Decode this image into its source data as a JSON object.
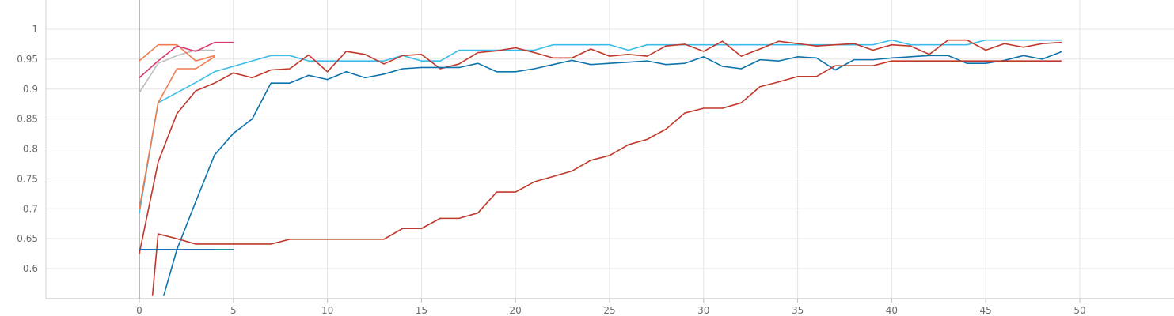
{
  "chart_data": {
    "type": "line",
    "title": "",
    "xlabel": "",
    "ylabel": "",
    "xlim": [
      -5,
      55
    ],
    "ylim": [
      0.555,
      1.045
    ],
    "x_ticks": [
      0,
      5,
      10,
      15,
      20,
      25,
      30,
      35,
      40,
      45,
      50
    ],
    "y_ticks": [
      0.6,
      0.65,
      0.7,
      0.75,
      0.8,
      0.85,
      0.9,
      0.95,
      1
    ],
    "y_tick_labels": [
      "0.6",
      "0.65",
      "0.7",
      "0.75",
      "0.8",
      "0.85",
      "0.9",
      "0.95",
      "1"
    ],
    "grid": true,
    "series": [
      {
        "color": "#3cbce8",
        "x": [
          0,
          1,
          2,
          3,
          4,
          5,
          6,
          7,
          8,
          9,
          10,
          11,
          12,
          13,
          14,
          15,
          16,
          17,
          18,
          19,
          20,
          21,
          22,
          23,
          24,
          25,
          26,
          27,
          28,
          29,
          30,
          31,
          32,
          33,
          34,
          35,
          36,
          37,
          38,
          39,
          40,
          41,
          42,
          43,
          44,
          45,
          46,
          47,
          48,
          49
        ],
        "y": [
          0.693,
          0.877,
          0.894,
          0.911,
          0.929,
          0.938,
          0.947,
          0.956,
          0.956,
          0.947,
          0.947,
          0.947,
          0.947,
          0.947,
          0.956,
          0.947,
          0.947,
          0.965,
          0.965,
          0.965,
          0.965,
          0.965,
          0.974,
          0.974,
          0.974,
          0.974,
          0.965,
          0.974,
          0.974,
          0.974,
          0.974,
          0.974,
          0.974,
          0.974,
          0.974,
          0.974,
          0.974,
          0.974,
          0.974,
          0.974,
          0.982,
          0.974,
          0.974,
          0.974,
          0.974,
          0.982,
          0.982,
          0.982,
          0.982,
          0.982
        ]
      },
      {
        "color": "#c0382b",
        "x": [
          0,
          1,
          2,
          3,
          4,
          5,
          6,
          7,
          8,
          9,
          10,
          11,
          12,
          13,
          14,
          15,
          16,
          17,
          18,
          19,
          20,
          21,
          22,
          23,
          24,
          25,
          26,
          27,
          28,
          29,
          30,
          31,
          32,
          33,
          34,
          35,
          36,
          37,
          38,
          39,
          40,
          41,
          42,
          43,
          44,
          45,
          46,
          47,
          48,
          49
        ],
        "y": [
          0.625,
          0.778,
          0.859,
          0.897,
          0.91,
          0.927,
          0.919,
          0.932,
          0.934,
          0.957,
          0.929,
          0.963,
          0.958,
          0.942,
          0.956,
          0.958,
          0.934,
          0.942,
          0.961,
          0.964,
          0.969,
          0.961,
          0.952,
          0.952,
          0.967,
          0.955,
          0.958,
          0.955,
          0.972,
          0.975,
          0.963,
          0.98,
          0.955,
          0.967,
          0.98,
          0.976,
          0.972,
          0.974,
          0.976,
          0.965,
          0.974,
          0.972,
          0.958,
          0.982,
          0.982,
          0.965,
          0.976,
          0.97,
          0.976,
          0.978
        ]
      },
      {
        "color": "#0d73ac",
        "x": [
          1.3,
          2,
          3,
          4,
          5,
          6,
          7,
          8,
          9,
          10,
          11,
          12,
          13,
          14,
          15,
          16,
          17,
          18,
          19,
          20,
          21,
          22,
          23,
          24,
          25,
          26,
          27,
          28,
          29,
          30,
          31,
          32,
          33,
          34,
          35,
          36,
          37,
          38,
          39,
          40,
          41,
          42,
          43,
          44,
          45,
          46,
          47,
          48,
          49
        ],
        "y": [
          0.555,
          0.632,
          0.712,
          0.79,
          0.826,
          0.85,
          0.91,
          0.91,
          0.923,
          0.916,
          0.929,
          0.919,
          0.925,
          0.934,
          0.936,
          0.936,
          0.936,
          0.943,
          0.929,
          0.929,
          0.934,
          0.941,
          0.948,
          0.941,
          0.943,
          0.945,
          0.947,
          0.941,
          0.943,
          0.954,
          0.938,
          0.934,
          0.949,
          0.947,
          0.954,
          0.952,
          0.932,
          0.949,
          0.949,
          0.952,
          0.954,
          0.956,
          0.956,
          0.943,
          0.943,
          0.948,
          0.956,
          0.95,
          0.962
        ]
      },
      {
        "color": "#c0382b",
        "x": [
          0.7,
          1,
          2,
          3,
          4,
          5,
          6,
          7,
          8,
          9,
          10,
          11,
          12,
          13,
          14,
          15,
          16,
          17,
          18,
          19,
          20,
          21,
          22,
          23,
          24,
          25,
          26,
          27,
          28,
          29,
          30,
          31,
          32,
          33,
          34,
          35,
          36,
          37,
          38,
          39,
          40,
          41,
          42,
          43,
          44,
          45,
          46,
          47,
          48,
          49
        ],
        "y": [
          0.555,
          0.658,
          0.65,
          0.641,
          0.641,
          0.641,
          0.641,
          0.641,
          0.649,
          0.649,
          0.649,
          0.649,
          0.649,
          0.649,
          0.667,
          0.667,
          0.684,
          0.684,
          0.693,
          0.728,
          0.728,
          0.745,
          0.754,
          0.763,
          0.781,
          0.789,
          0.807,
          0.816,
          0.833,
          0.86,
          0.868,
          0.868,
          0.877,
          0.904,
          0.912,
          0.921,
          0.921,
          0.939,
          0.939,
          0.939,
          0.947,
          0.947,
          0.947,
          0.947,
          0.947,
          0.947,
          0.947,
          0.947,
          0.947,
          0.947
        ]
      },
      {
        "color": "#1a8bab",
        "x": [
          0,
          1,
          2,
          3,
          4,
          5
        ],
        "y": [
          0.632,
          0.632,
          0.632,
          0.632,
          0.632,
          0.632
        ]
      },
      {
        "color": "#2373b8",
        "x": [
          0,
          1,
          2,
          3,
          4
        ],
        "y": [
          0.632,
          0.632,
          0.632,
          0.632,
          0.632
        ]
      },
      {
        "color": "#bdbdbd",
        "x": [
          0,
          1,
          2,
          3,
          4
        ],
        "y": [
          0.894,
          0.943,
          0.956,
          0.965,
          0.965
        ]
      },
      {
        "color": "#f07b4f",
        "x": [
          0,
          1,
          2,
          3,
          4
        ],
        "y": [
          0.7,
          0.877,
          0.934,
          0.934,
          0.954
        ]
      },
      {
        "color": "#f07b4f",
        "x": [
          0,
          1,
          2,
          3,
          4
        ],
        "y": [
          0.947,
          0.974,
          0.974,
          0.947,
          0.956
        ]
      },
      {
        "color": "#d63a6e",
        "x": [
          0,
          1,
          2,
          3,
          4,
          5
        ],
        "y": [
          0.919,
          0.947,
          0.972,
          0.963,
          0.978,
          0.978
        ]
      }
    ]
  }
}
